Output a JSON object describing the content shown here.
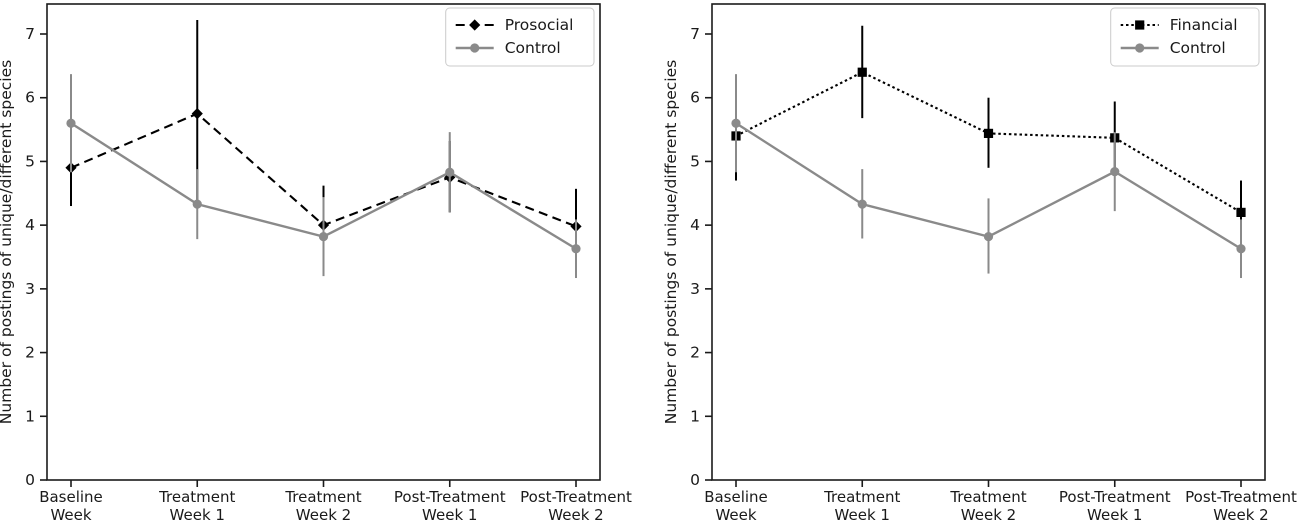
{
  "figure": {
    "background": "#ffffff"
  },
  "chart_data": [
    {
      "type": "line",
      "panel": "left",
      "title": "",
      "xlabel": "",
      "ylabel": "Number of postings of unique/different species",
      "categories": [
        [
          "Baseline",
          "Week"
        ],
        [
          "Treatment",
          "Week 1"
        ],
        [
          "Treatment",
          "Week 2"
        ],
        [
          "Post-Treatment",
          "Week 1"
        ],
        [
          "Post-Treatment",
          "Week 2"
        ]
      ],
      "yticks": [
        "0",
        "1",
        "2",
        "3",
        "4",
        "5",
        "6",
        "7"
      ],
      "ylim": [
        0,
        7.47
      ],
      "grid": false,
      "legend_position": "upper-right",
      "series": [
        {
          "name": "Prosocial",
          "color": "#000000",
          "line_style": "dashed",
          "marker": "diamond",
          "values": [
            4.9,
            5.75,
            4.0,
            4.75,
            3.98
          ],
          "err_lo": [
            4.3,
            4.28,
            3.39,
            4.2,
            3.4
          ],
          "err_hi": [
            5.5,
            7.22,
            4.62,
            5.32,
            4.57
          ]
        },
        {
          "name": "Control",
          "color": "#8a8a8a",
          "line_style": "solid",
          "marker": "circle",
          "values": [
            5.6,
            4.33,
            3.82,
            4.83,
            3.63
          ],
          "err_lo": [
            4.83,
            3.78,
            3.2,
            4.2,
            3.17
          ],
          "err_hi": [
            6.37,
            4.88,
            4.44,
            5.46,
            4.09
          ]
        }
      ]
    },
    {
      "type": "line",
      "panel": "right",
      "title": "",
      "xlabel": "",
      "ylabel": "Number of postings of unique/different species",
      "categories": [
        [
          "Baseline",
          "Week"
        ],
        [
          "Treatment",
          "Week 1"
        ],
        [
          "Treatment",
          "Week 2"
        ],
        [
          "Post-Treatment",
          "Week 1"
        ],
        [
          "Post-Treatment",
          "Week 2"
        ]
      ],
      "yticks": [
        "0",
        "1",
        "2",
        "3",
        "4",
        "5",
        "6",
        "7"
      ],
      "ylim": [
        0,
        7.47
      ],
      "grid": false,
      "legend_position": "upper-right",
      "series": [
        {
          "name": "Financial",
          "color": "#000000",
          "line_style": "dotted",
          "marker": "square",
          "values": [
            5.4,
            6.4,
            5.44,
            5.37,
            4.2
          ],
          "err_lo": [
            4.7,
            5.68,
            4.9,
            4.8,
            3.7
          ],
          "err_hi": [
            6.1,
            7.13,
            6.0,
            5.94,
            4.7
          ]
        },
        {
          "name": "Control",
          "color": "#8a8a8a",
          "line_style": "solid",
          "marker": "circle",
          "values": [
            5.6,
            4.33,
            3.82,
            4.84,
            3.63
          ],
          "err_lo": [
            4.83,
            3.79,
            3.24,
            4.22,
            3.17
          ],
          "err_hi": [
            6.37,
            4.88,
            4.42,
            5.46,
            4.09
          ]
        }
      ]
    }
  ]
}
